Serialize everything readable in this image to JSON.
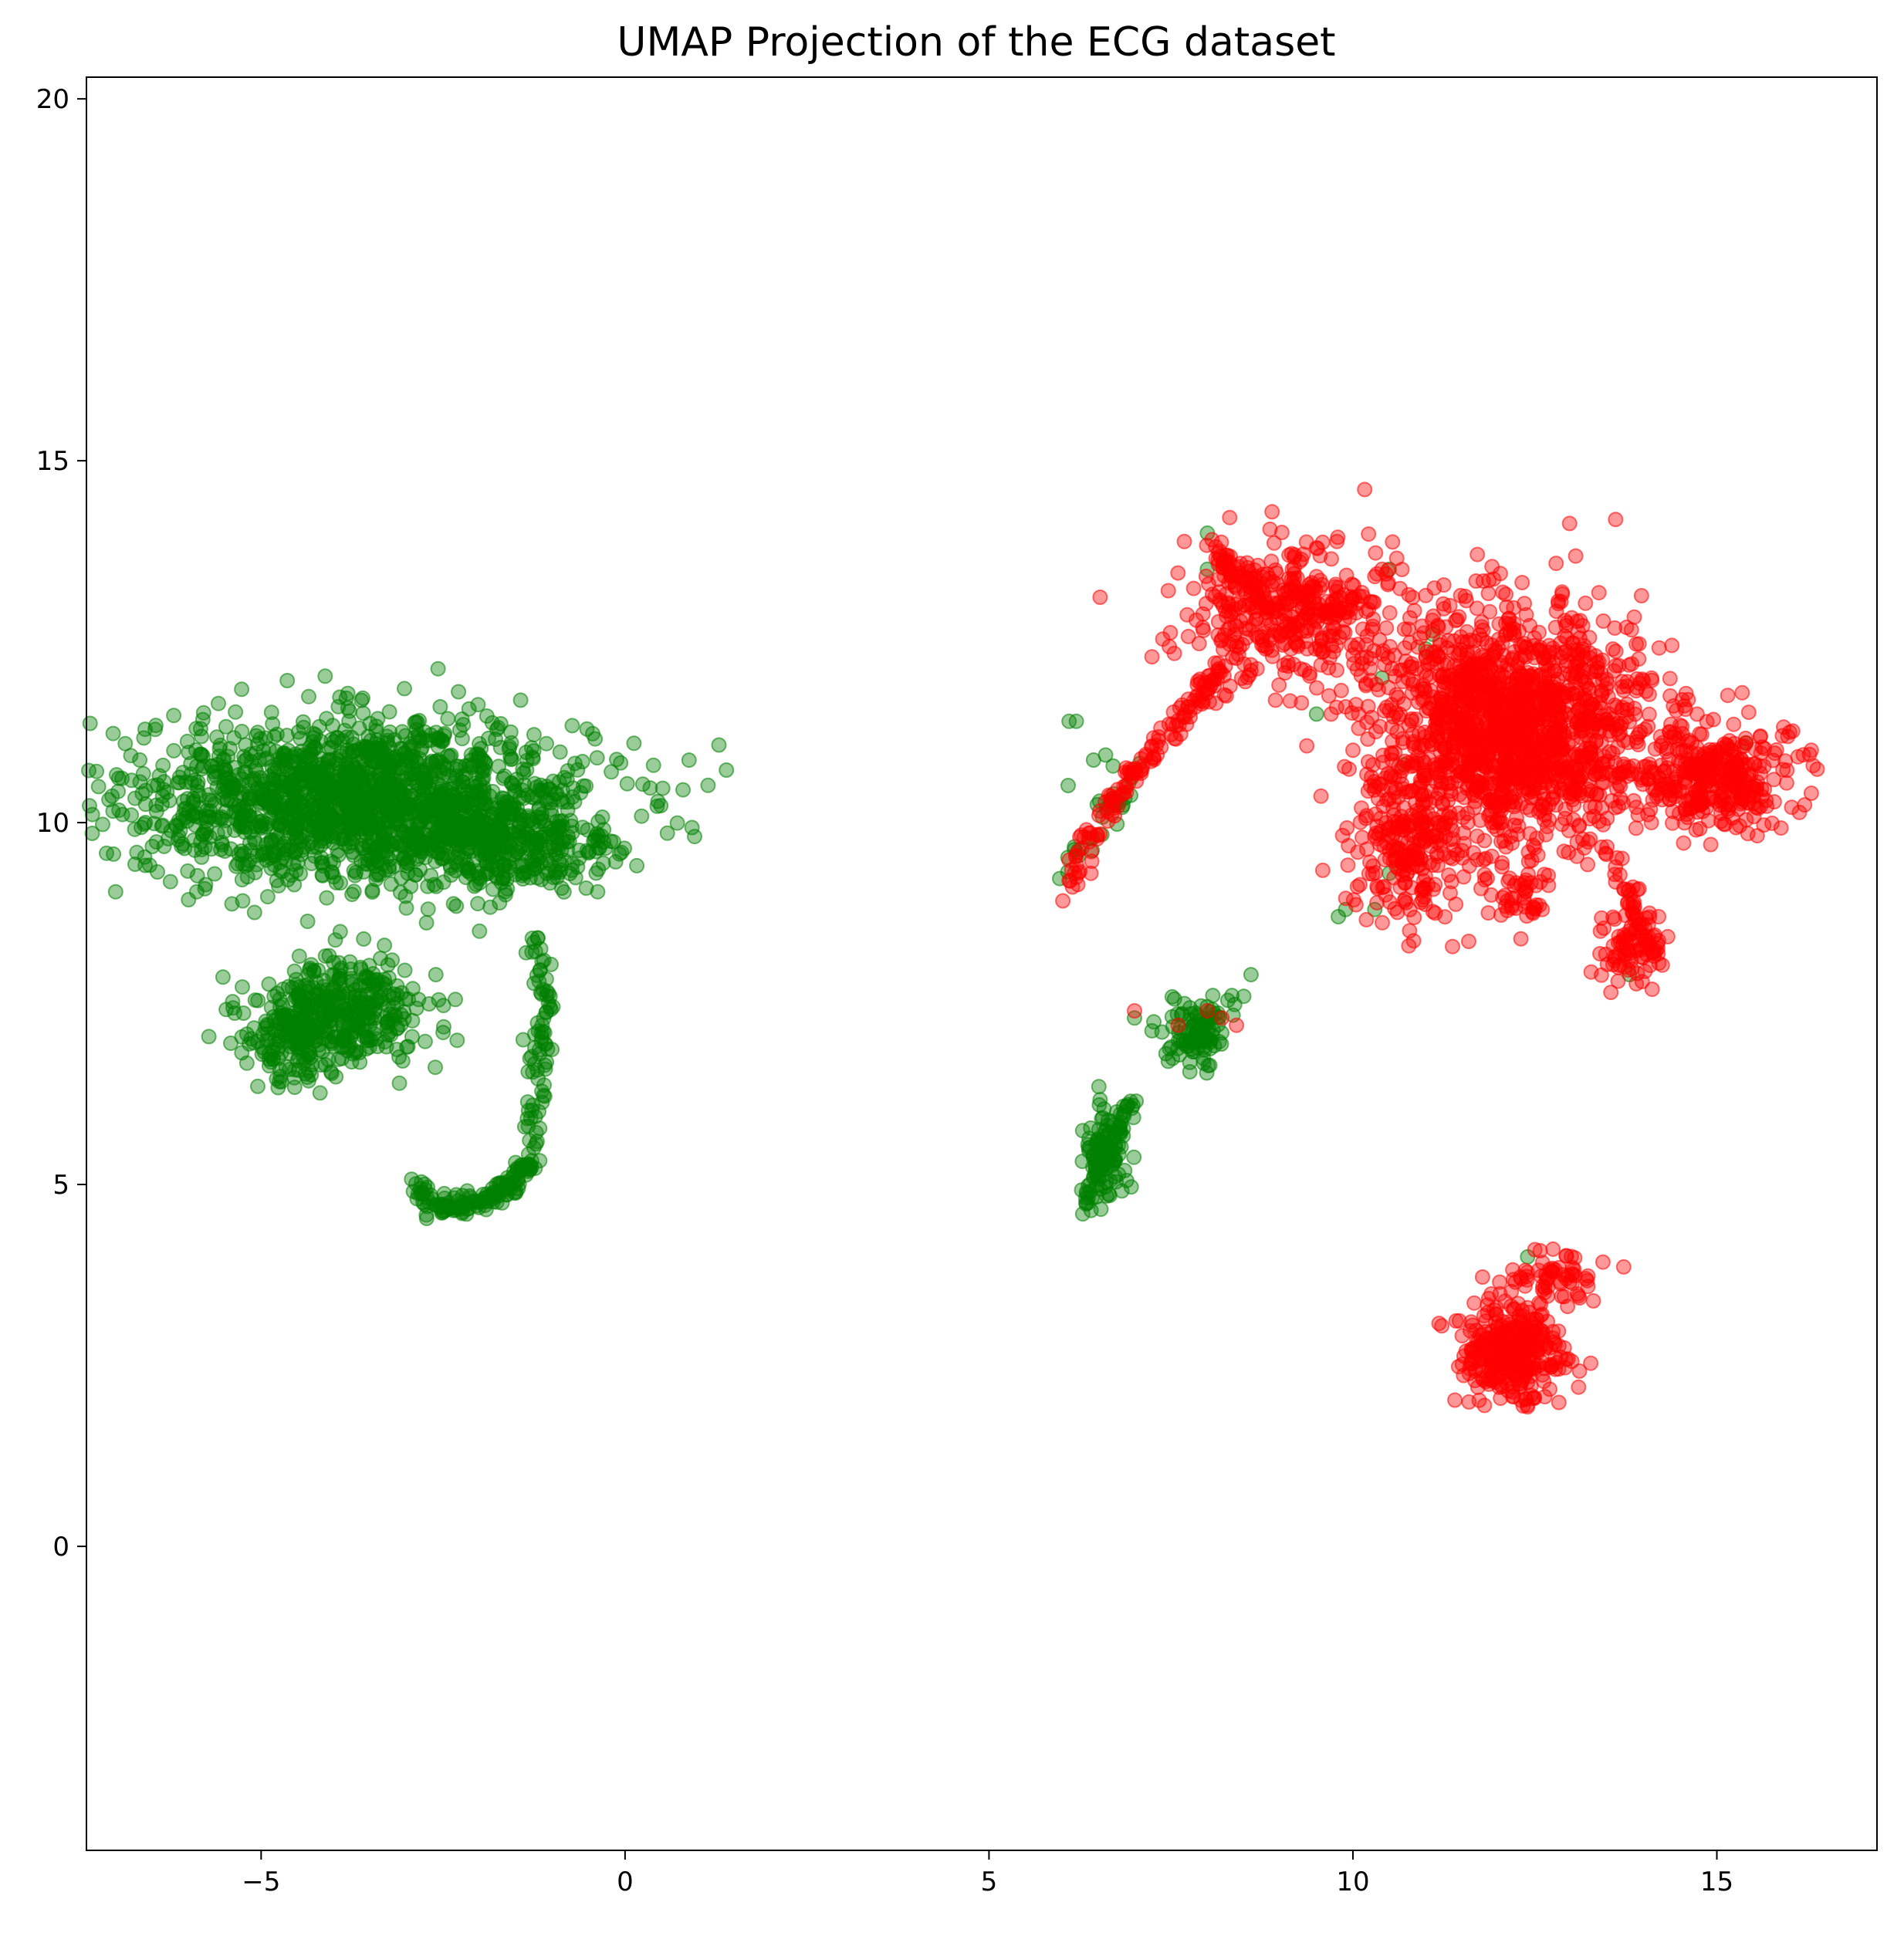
{
  "chart_data": {
    "type": "scatter",
    "title": "UMAP Projection of the ECG dataset",
    "xlabel": "",
    "ylabel": "",
    "xlim": [
      -7.4,
      17.2
    ],
    "ylim": [
      -4.2,
      20.3
    ],
    "xticks": [
      -5,
      0,
      5,
      10,
      15
    ],
    "xtick_labels": [
      "−5",
      "0",
      "5",
      "10",
      "15"
    ],
    "yticks": [
      0,
      5,
      10,
      15,
      20
    ],
    "ytick_labels": [
      "0",
      "5",
      "10",
      "15",
      "20"
    ],
    "grid": false,
    "legend": "none",
    "marker_alpha": 0.4,
    "series": [
      {
        "color": "#008000",
        "clusters": [
          {
            "cx": -3.6,
            "cy": 10.3,
            "sx": 1.55,
            "sy": 0.55,
            "n": 1700
          },
          {
            "cx": -1.6,
            "cy": 9.6,
            "sx": 0.75,
            "sy": 0.35,
            "n": 250
          },
          {
            "cx": -3.9,
            "cy": 7.4,
            "sx": 0.6,
            "sy": 0.35,
            "n": 320
          },
          {
            "cx": -4.5,
            "cy": 7.0,
            "sx": 0.3,
            "sy": 0.3,
            "n": 150
          },
          {
            "cx": 6.6,
            "cy": 5.5,
            "sx": 0.15,
            "sy": 0.35,
            "n": 90
          },
          {
            "cx": 7.9,
            "cy": 7.1,
            "sx": 0.2,
            "sy": 0.25,
            "n": 110
          },
          {
            "cx": 6.6,
            "cy": 10.4,
            "sx": 0.25,
            "sy": 0.25,
            "n": 20
          }
        ],
        "arcs": [
          {
            "x": [
              -1.3,
              -1.1,
              -1.2,
              -1.3,
              -1.5,
              -1.9,
              -2.3,
              -2.7,
              -2.8
            ],
            "y": [
              8.5,
              7.5,
              6.3,
              5.4,
              5.0,
              4.8,
              4.7,
              4.7,
              5.1
            ],
            "n": 220,
            "spread": 0.12
          },
          {
            "x": [
              6.3,
              6.4,
              6.6,
              6.8,
              7.0
            ],
            "y": [
              4.6,
              5.0,
              5.4,
              5.8,
              6.2
            ],
            "n": 60,
            "spread": 0.1
          },
          {
            "x": [
              6.0,
              6.4,
              6.8
            ],
            "y": [
              9.2,
              9.8,
              10.5
            ],
            "n": 15,
            "spread": 0.1
          }
        ],
        "points": [
          [
            -0.4,
            9.6
          ],
          [
            -0.35,
            9.65
          ],
          [
            6.1,
            11.4
          ],
          [
            6.2,
            11.4
          ],
          [
            8.0,
            14.0
          ],
          [
            8.0,
            13.5
          ],
          [
            9.5,
            11.5
          ],
          [
            9.8,
            8.7
          ],
          [
            9.9,
            8.8
          ],
          [
            10.3,
            8.8
          ],
          [
            10.4,
            12.0
          ],
          [
            10.5,
            13.5
          ],
          [
            10.5,
            9.3
          ],
          [
            10.6,
            9.6
          ],
          [
            10.7,
            10.8
          ],
          [
            11.0,
            12.4
          ],
          [
            11.1,
            12.6
          ],
          [
            13.8,
            7.9
          ],
          [
            15.4,
            11.1
          ],
          [
            12.4,
            4.0
          ],
          [
            7.0,
            7.3
          ],
          [
            8.5,
            7.6
          ],
          [
            8.6,
            7.9
          ],
          [
            -3.1,
            6.4
          ],
          [
            -2.6,
            7.9
          ],
          [
            -2.5,
            7.1
          ],
          [
            -2.0,
            8.5
          ],
          [
            -1.4,
            7.0
          ],
          [
            -3.0,
            6.9
          ],
          [
            -3.2,
            8.1
          ]
        ]
      },
      {
        "color": "#ff0000",
        "clusters": [
          {
            "cx": 12.2,
            "cy": 11.3,
            "sx": 0.95,
            "sy": 0.8,
            "n": 1600
          },
          {
            "cx": 15.0,
            "cy": 10.6,
            "sx": 0.55,
            "sy": 0.35,
            "n": 330
          },
          {
            "cx": 9.2,
            "cy": 12.9,
            "sx": 0.75,
            "sy": 0.45,
            "n": 380
          },
          {
            "cx": 10.7,
            "cy": 9.6,
            "sx": 0.35,
            "sy": 0.5,
            "n": 200
          },
          {
            "cx": 12.2,
            "cy": 2.7,
            "sx": 0.35,
            "sy": 0.35,
            "n": 330
          },
          {
            "cx": 12.8,
            "cy": 3.7,
            "sx": 0.35,
            "sy": 0.15,
            "n": 60
          },
          {
            "cx": 13.8,
            "cy": 8.3,
            "sx": 0.2,
            "sy": 0.3,
            "n": 80
          },
          {
            "cx": 12.3,
            "cy": 9.0,
            "sx": 0.2,
            "sy": 0.25,
            "n": 40
          }
        ],
        "arcs": [
          {
            "x": [
              6.0,
              6.4,
              6.9,
              7.4,
              7.9,
              8.2
            ],
            "y": [
              8.9,
              9.8,
              10.6,
              11.2,
              11.7,
              12.2
            ],
            "n": 140,
            "spread": 0.12
          },
          {
            "x": [
              8.0,
              8.3,
              8.6,
              9.0
            ],
            "y": [
              13.8,
              13.5,
              13.3,
              13.0
            ],
            "n": 60,
            "spread": 0.15
          },
          {
            "x": [
              13.5,
              13.8,
              14.0,
              14.2
            ],
            "y": [
              9.6,
              9.0,
              8.5,
              8.0
            ],
            "n": 40,
            "spread": 0.12
          }
        ],
        "points": [
          [
            9.7,
            11.5
          ],
          [
            9.9,
            11.6
          ],
          [
            10.0,
            11.0
          ],
          [
            11.9,
            9.0
          ],
          [
            13.4,
            8.5
          ],
          [
            14.2,
            8.7
          ],
          [
            12.5,
            4.1
          ],
          [
            13.2,
            3.7
          ],
          [
            8.0,
            7.4
          ],
          [
            8.2,
            7.3
          ],
          [
            8.4,
            7.2
          ],
          [
            7.6,
            7.2
          ],
          [
            7.0,
            7.4
          ],
          [
            6.1,
            9.2
          ],
          [
            6.4,
            9.3
          ],
          [
            11.6,
            9.4
          ],
          [
            10.4,
            13.5
          ],
          [
            10.3,
            13.4
          ],
          [
            9.5,
            13.4
          ],
          [
            8.8,
            12.4
          ],
          [
            15.9,
            11.2
          ],
          [
            16.0,
            11.25
          ],
          [
            14.1,
            10.0
          ],
          [
            13.1,
            2.2
          ]
        ]
      }
    ]
  }
}
